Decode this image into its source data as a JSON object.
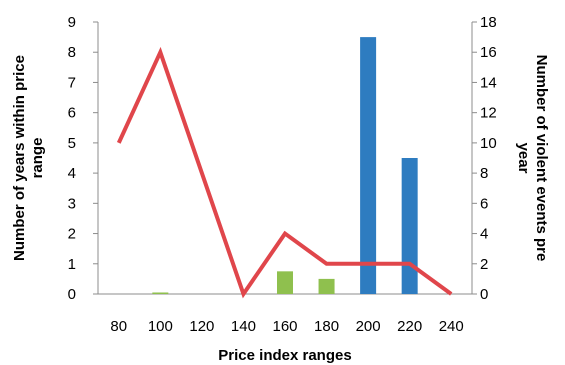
{
  "chart_data": {
    "type": "bar",
    "x_axis": {
      "title": "Price index ranges",
      "tick_labels": [
        "80",
        "100",
        "120",
        "140",
        "160",
        "180",
        "200",
        "220",
        "240"
      ]
    },
    "y_left": {
      "title_lines": [
        "Number of years within price",
        "range"
      ],
      "ylim": [
        0,
        9
      ],
      "tick_labels": [
        "0",
        "1",
        "2",
        "3",
        "4",
        "5",
        "6",
        "7",
        "8",
        "9"
      ]
    },
    "y_right": {
      "title_lines": [
        "Number of violent events pre",
        "year"
      ],
      "ylim": [
        0,
        18
      ],
      "tick_labels": [
        "0",
        "2",
        "4",
        "6",
        "8",
        "10",
        "12",
        "14",
        "16",
        "18"
      ]
    },
    "bars": [
      {
        "x": 100,
        "value": 0.05,
        "color": "#8fc04e"
      },
      {
        "x": 160,
        "value": 0.75,
        "color": "#8fc04e"
      },
      {
        "x": 180,
        "value": 0.5,
        "color": "#8fc04e"
      },
      {
        "x": 200,
        "value": 8.5,
        "color": "#2e7cc0"
      },
      {
        "x": 220,
        "value": 4.5,
        "color": "#2e7cc0"
      }
    ],
    "line": {
      "color": "#e0464b",
      "axis": "right",
      "points": [
        {
          "x": 80,
          "y": 10
        },
        {
          "x": 100,
          "y": 16
        },
        {
          "x": 140,
          "y": 0
        },
        {
          "x": 160,
          "y": 4
        },
        {
          "x": 180,
          "y": 2
        },
        {
          "x": 200,
          "y": 2
        },
        {
          "x": 220,
          "y": 2
        },
        {
          "x": 240,
          "y": 0
        }
      ]
    },
    "grid": false,
    "legend": "none"
  }
}
